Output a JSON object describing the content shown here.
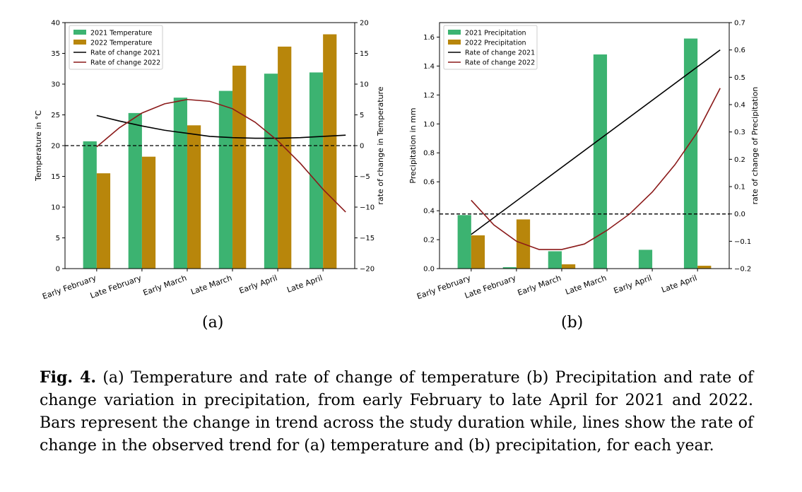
{
  "chart_data": [
    {
      "type": "bar",
      "panel": "(a)",
      "categories": [
        "Early February",
        "Late February",
        "Early March",
        "Late March",
        "Early April",
        "Late April"
      ],
      "ylabel": "Temperature in °C",
      "ylabel_right": "rate of change in Temperature",
      "ylim": [
        0,
        40
      ],
      "yticks": [
        "0",
        "5",
        "10",
        "15",
        "20",
        "25",
        "30",
        "35",
        "40"
      ],
      "ylim_right": [
        -20,
        20
      ],
      "yticks_right": [
        "−20",
        "−15",
        "−10",
        "−5",
        "0",
        "5",
        "10",
        "15",
        "20"
      ],
      "bar_series": [
        {
          "name": "2021 Temperature",
          "color": "#3cb371",
          "values": [
            20.7,
            25.3,
            27.8,
            28.9,
            31.7,
            31.9
          ]
        },
        {
          "name": "2022 Temperature",
          "color": "#b8860b",
          "values": [
            15.5,
            18.2,
            23.3,
            33.0,
            36.1,
            38.1
          ]
        }
      ],
      "line_series": [
        {
          "name": "Rate of change 2021",
          "color": "#000000",
          "x": [
            0,
            0.5,
            1,
            1.5,
            2,
            2.5,
            3,
            3.5,
            4,
            4.5,
            5,
            5.5
          ],
          "values": [
            4.9,
            4.0,
            3.2,
            2.5,
            2.0,
            1.5,
            1.3,
            1.2,
            1.2,
            1.3,
            1.5,
            1.7
          ]
        },
        {
          "name": "Rate of change 2022",
          "color": "#8b1a1a",
          "x": [
            0,
            0.5,
            1,
            1.5,
            2,
            2.5,
            3,
            3.5,
            4,
            4.5,
            5,
            5.5
          ],
          "values": [
            -0.2,
            2.9,
            5.3,
            6.8,
            7.5,
            7.2,
            6.0,
            3.8,
            0.8,
            -2.9,
            -7.1,
            -10.8
          ]
        }
      ],
      "reference_line": {
        "axis": "right",
        "value": 0,
        "style": "dashed"
      },
      "legend": "top-left"
    },
    {
      "type": "bar",
      "panel": "(b)",
      "categories": [
        "Early February",
        "Late February",
        "Early March",
        "Late March",
        "Early April",
        "Late April"
      ],
      "ylabel": "Precipitation in mm",
      "ylabel_right": "rate of change of Precipitation",
      "ylim": [
        0,
        1.7
      ],
      "yticks": [
        "0.0",
        "0.2",
        "0.4",
        "0.6",
        "0.8",
        "1.0",
        "1.2",
        "1.4",
        "1.6"
      ],
      "ylim_right": [
        -0.2,
        0.7
      ],
      "yticks_right": [
        "−0.2",
        "−0.1",
        "0.0",
        "0.1",
        "0.2",
        "0.3",
        "0.4",
        "0.5",
        "0.6",
        "0.7"
      ],
      "bar_series": [
        {
          "name": "2021 Precipitation",
          "color": "#3cb371",
          "values": [
            0.37,
            0.01,
            0.12,
            1.48,
            0.13,
            1.59
          ]
        },
        {
          "name": "2022 Precipitation",
          "color": "#b8860b",
          "values": [
            0.23,
            0.34,
            0.03,
            0.0,
            0.0,
            0.02
          ]
        }
      ],
      "line_series": [
        {
          "name": "Rate of change 2021",
          "color": "#000000",
          "x": [
            0,
            5.5
          ],
          "values": [
            -0.075,
            0.6
          ]
        },
        {
          "name": "Rate of change 2022",
          "color": "#8b1a1a",
          "x": [
            0,
            0.5,
            1,
            1.5,
            2,
            2.5,
            3,
            3.5,
            4,
            4.5,
            5,
            5.5
          ],
          "values": [
            0.05,
            -0.04,
            -0.1,
            -0.13,
            -0.13,
            -0.11,
            -0.06,
            0.0,
            0.08,
            0.18,
            0.3,
            0.46
          ]
        }
      ],
      "reference_line": {
        "axis": "right",
        "value": 0,
        "style": "dashed"
      },
      "legend": "top-left"
    }
  ],
  "labels": {
    "panel_a": "(a)",
    "panel_b": "(b)"
  },
  "caption": {
    "figure_label": "Fig. 4.",
    "text": " (a) Temperature and rate of change of temperature (b) Precipitation and rate of change variation in precipitation, from early February to late April for 2021 and 2022. Bars represent the change in trend across the study duration while, lines show the rate of change in the observed trend for (a) temperature and (b) precipitation, for each year."
  }
}
